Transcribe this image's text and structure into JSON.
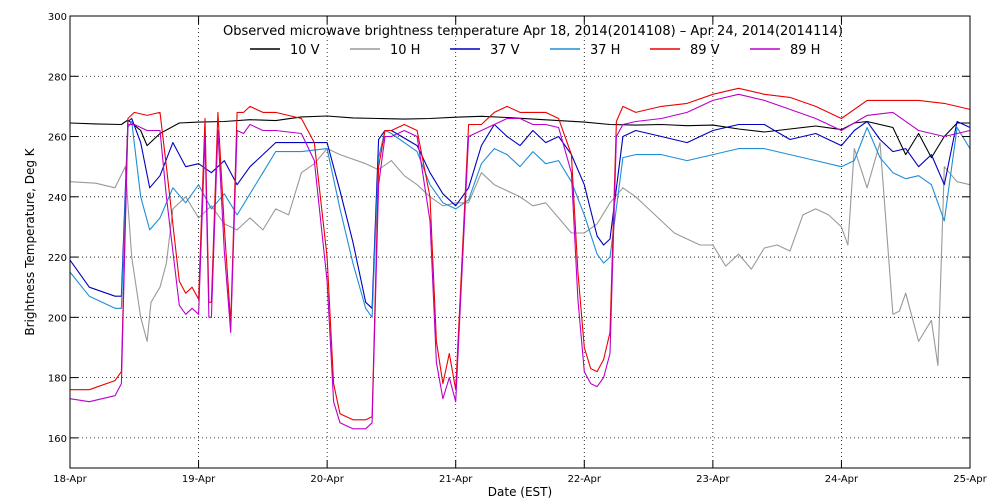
{
  "chart_data": {
    "type": "line",
    "title": "Observed microwave brightness temperature Apr 18, 2014(2014108) – Apr 24, 2014(2014114)",
    "xlabel": "Date (EST)",
    "ylabel": "Brightness Temperature, Deg K",
    "xlim": [
      0,
      7
    ],
    "ylim": [
      150,
      300
    ],
    "grid": true,
    "legend_position": "top",
    "x_ticks": [
      {
        "value": 0,
        "label": "18-Apr"
      },
      {
        "value": 1,
        "label": "19-Apr"
      },
      {
        "value": 2,
        "label": "20-Apr"
      },
      {
        "value": 3,
        "label": "21-Apr"
      },
      {
        "value": 4,
        "label": "22-Apr"
      },
      {
        "value": 5,
        "label": "23-Apr"
      },
      {
        "value": 6,
        "label": "24-Apr"
      },
      {
        "value": 7,
        "label": "25-Apr"
      }
    ],
    "y_ticks": [
      {
        "value": 160,
        "label": "160"
      },
      {
        "value": 180,
        "label": "180"
      },
      {
        "value": 200,
        "label": "200"
      },
      {
        "value": 220,
        "label": "220"
      },
      {
        "value": 240,
        "label": "240"
      },
      {
        "value": 260,
        "label": "260"
      },
      {
        "value": 280,
        "label": "280"
      },
      {
        "value": 300,
        "label": "300"
      }
    ],
    "series": [
      {
        "name": "10 V",
        "color": "#000000",
        "x": [
          0,
          0.2,
          0.4,
          0.45,
          0.55,
          0.6,
          0.7,
          0.85,
          1.0,
          1.2,
          1.4,
          1.6,
          1.8,
          2.0,
          2.2,
          2.4,
          2.6,
          2.8,
          3.0,
          3.2,
          3.4,
          3.6,
          3.8,
          4.0,
          4.2,
          4.4,
          4.6,
          4.8,
          5.0,
          5.2,
          5.4,
          5.6,
          5.8,
          6.0,
          6.1,
          6.2,
          6.4,
          6.5,
          6.6,
          6.7,
          6.8,
          6.9,
          7.0
        ],
        "y": [
          264.5,
          264.2,
          264.0,
          265.5,
          262,
          257,
          261,
          264.5,
          264.8,
          265.0,
          265.6,
          265.3,
          266.5,
          266.8,
          266.2,
          266.0,
          265.8,
          266.0,
          266.4,
          266.7,
          266.3,
          265.8,
          265.3,
          264.8,
          264.0,
          263.8,
          264.0,
          263.6,
          263.8,
          262.5,
          261.5,
          262.5,
          263.5,
          262.3,
          264.5,
          265,
          263,
          254,
          261,
          253,
          260,
          264.5,
          264.5
        ]
      },
      {
        "name": "10 H",
        "color": "#999999",
        "x": [
          0,
          0.2,
          0.35,
          0.43,
          0.48,
          0.55,
          0.6,
          0.63,
          0.7,
          0.75,
          0.8,
          0.9,
          1.0,
          1.1,
          1.2,
          1.3,
          1.4,
          1.5,
          1.6,
          1.7,
          1.8,
          1.9,
          2.0,
          2.1,
          2.3,
          2.4,
          2.5,
          2.6,
          2.7,
          2.8,
          2.9,
          3.0,
          3.1,
          3.2,
          3.3,
          3.4,
          3.5,
          3.6,
          3.7,
          3.8,
          3.9,
          4.0,
          4.1,
          4.2,
          4.3,
          4.4,
          4.5,
          4.6,
          4.7,
          4.8,
          4.9,
          5.0,
          5.1,
          5.2,
          5.3,
          5.4,
          5.5,
          5.6,
          5.7,
          5.8,
          5.9,
          6.0,
          6.05,
          6.1,
          6.2,
          6.3,
          6.4,
          6.45,
          6.5,
          6.6,
          6.7,
          6.75,
          6.8,
          6.9,
          7.0
        ],
        "y": [
          245,
          244.5,
          243,
          250,
          220,
          200,
          192,
          205,
          210,
          218,
          236,
          240,
          233,
          237,
          231,
          229,
          233,
          229,
          236,
          234,
          248,
          251,
          256,
          254,
          251,
          249,
          252,
          247,
          244,
          240,
          237,
          238,
          238,
          248,
          244,
          242,
          240,
          237,
          238,
          233,
          228,
          228,
          231,
          238,
          243,
          240,
          236,
          232,
          228,
          226,
          224,
          224,
          217,
          221,
          216,
          223,
          224,
          222,
          234,
          236,
          234,
          230,
          224,
          256,
          243,
          258,
          201,
          202,
          208,
          192,
          199,
          184,
          250,
          245,
          244
        ]
      },
      {
        "name": "37 V",
        "color": "#0000c0",
        "x": [
          0,
          0.15,
          0.35,
          0.4,
          0.45,
          0.48,
          0.55,
          0.62,
          0.7,
          0.8,
          0.9,
          1.0,
          1.1,
          1.2,
          1.3,
          1.4,
          1.5,
          1.6,
          1.8,
          2.0,
          2.1,
          2.2,
          2.3,
          2.35,
          2.4,
          2.45,
          2.5,
          2.7,
          2.8,
          2.9,
          3.0,
          3.1,
          3.2,
          3.3,
          3.4,
          3.5,
          3.6,
          3.7,
          3.8,
          3.9,
          4.0,
          4.1,
          4.15,
          4.2,
          4.3,
          4.4,
          4.6,
          4.8,
          5.0,
          5.2,
          5.4,
          5.6,
          5.8,
          6.0,
          6.1,
          6.2,
          6.3,
          6.4,
          6.5,
          6.6,
          6.7,
          6.8,
          6.9,
          7.0
        ],
        "y": [
          219,
          210,
          207,
          207,
          265,
          266,
          258,
          243,
          247,
          258,
          250,
          251,
          248,
          252,
          244,
          250,
          254,
          258,
          258,
          258,
          242,
          225,
          205,
          203,
          259,
          262,
          262,
          257,
          248,
          241,
          237,
          243,
          257,
          264,
          260,
          257,
          262,
          258,
          260,
          254,
          244,
          227,
          224,
          226,
          260,
          262,
          260,
          258,
          262,
          264,
          264,
          259,
          261,
          257,
          262,
          265,
          259,
          255,
          256,
          250,
          254,
          244,
          265,
          263
        ]
      },
      {
        "name": "37 H",
        "color": "#1f8fd6",
        "x": [
          0,
          0.15,
          0.35,
          0.4,
          0.45,
          0.48,
          0.55,
          0.62,
          0.7,
          0.8,
          0.9,
          1.0,
          1.1,
          1.2,
          1.3,
          1.4,
          1.5,
          1.6,
          1.8,
          2.0,
          2.1,
          2.2,
          2.3,
          2.35,
          2.4,
          2.45,
          2.5,
          2.7,
          2.8,
          2.9,
          3.0,
          3.1,
          3.2,
          3.3,
          3.4,
          3.5,
          3.6,
          3.7,
          3.8,
          3.9,
          4.0,
          4.1,
          4.15,
          4.2,
          4.3,
          4.4,
          4.6,
          4.8,
          5.0,
          5.2,
          5.4,
          5.6,
          5.8,
          6.0,
          6.1,
          6.2,
          6.3,
          6.4,
          6.5,
          6.6,
          6.7,
          6.8,
          6.9,
          7.0
        ],
        "y": [
          215,
          207,
          203,
          203,
          263,
          265,
          240,
          229,
          233,
          243,
          238,
          244,
          236,
          241,
          234,
          241,
          248,
          255,
          255,
          256,
          236,
          218,
          203,
          200,
          253,
          262,
          261,
          255,
          244,
          238,
          236,
          239,
          251,
          256,
          254,
          250,
          255,
          251,
          252,
          245,
          234,
          221,
          218,
          220,
          253,
          254,
          254,
          252,
          254,
          256,
          256,
          254,
          252,
          250,
          252,
          263,
          253,
          248,
          246,
          247,
          244,
          232,
          263,
          256
        ]
      },
      {
        "name": "89 V",
        "color": "#ee0000",
        "x": [
          0,
          0.15,
          0.35,
          0.4,
          0.45,
          0.5,
          0.6,
          0.7,
          0.75,
          0.85,
          0.9,
          0.95,
          1.0,
          1.05,
          1.08,
          1.1,
          1.15,
          1.2,
          1.25,
          1.3,
          1.35,
          1.4,
          1.5,
          1.6,
          1.8,
          1.9,
          2.0,
          2.05,
          2.1,
          2.2,
          2.3,
          2.35,
          2.4,
          2.45,
          2.5,
          2.6,
          2.7,
          2.8,
          2.85,
          2.9,
          2.95,
          3.0,
          3.1,
          3.2,
          3.3,
          3.4,
          3.5,
          3.6,
          3.7,
          3.8,
          3.9,
          3.95,
          4.0,
          4.05,
          4.1,
          4.15,
          4.2,
          4.25,
          4.3,
          4.4,
          4.6,
          4.8,
          5.0,
          5.2,
          5.4,
          5.6,
          5.8,
          6.0,
          6.2,
          6.4,
          6.6,
          6.8,
          7.0
        ],
        "y": [
          176,
          176,
          179,
          182,
          266,
          268,
          267,
          268,
          250,
          212,
          208,
          210,
          206,
          266,
          205,
          205,
          268,
          230,
          198,
          268,
          268,
          270,
          268,
          268,
          266,
          258,
          220,
          178,
          168,
          166,
          166,
          167,
          250,
          262,
          262,
          264,
          262,
          240,
          192,
          178,
          188,
          176,
          264,
          264,
          268,
          270,
          268,
          268,
          268,
          266,
          254,
          215,
          190,
          183,
          182,
          186,
          195,
          265,
          270,
          268,
          270,
          271,
          274,
          276,
          274,
          273,
          270,
          266,
          272,
          272,
          272,
          271,
          269
        ]
      },
      {
        "name": "89 H",
        "color": "#bb00cc",
        "x": [
          0,
          0.15,
          0.35,
          0.4,
          0.45,
          0.5,
          0.6,
          0.7,
          0.75,
          0.85,
          0.9,
          0.95,
          1.0,
          1.05,
          1.08,
          1.1,
          1.15,
          1.2,
          1.25,
          1.3,
          1.35,
          1.4,
          1.5,
          1.6,
          1.8,
          1.9,
          2.0,
          2.05,
          2.1,
          2.2,
          2.3,
          2.35,
          2.4,
          2.45,
          2.5,
          2.6,
          2.7,
          2.8,
          2.85,
          2.9,
          2.95,
          3.0,
          3.1,
          3.2,
          3.3,
          3.4,
          3.5,
          3.6,
          3.7,
          3.8,
          3.9,
          3.95,
          4.0,
          4.05,
          4.1,
          4.15,
          4.2,
          4.25,
          4.3,
          4.4,
          4.6,
          4.8,
          5.0,
          5.2,
          5.4,
          5.6,
          5.8,
          6.0,
          6.2,
          6.4,
          6.6,
          6.8,
          7.0
        ],
        "y": [
          173,
          172,
          174,
          178,
          264,
          264,
          262,
          262,
          240,
          204,
          201,
          203,
          201,
          260,
          200,
          200,
          262,
          222,
          195,
          262,
          261,
          264,
          262,
          262,
          261,
          252,
          212,
          172,
          165,
          163,
          163,
          165,
          244,
          260,
          260,
          262,
          260,
          232,
          185,
          173,
          180,
          172,
          260,
          262,
          264,
          266,
          266,
          264,
          264,
          263,
          248,
          206,
          182,
          178,
          177,
          180,
          188,
          260,
          264,
          265,
          266,
          268,
          272,
          274,
          272,
          269,
          266,
          262,
          267,
          268,
          262,
          260,
          262
        ]
      }
    ]
  }
}
